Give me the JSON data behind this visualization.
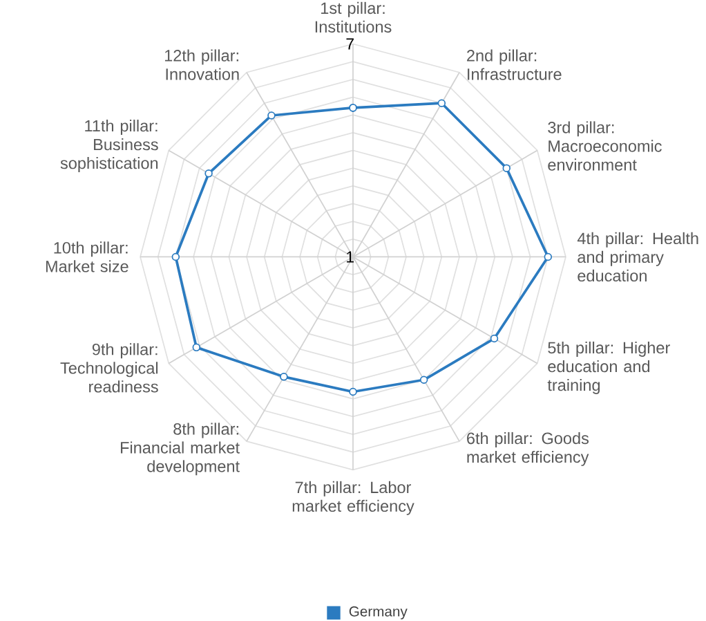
{
  "chart_data": {
    "type": "radar",
    "categories": [
      "1st pillar: Institutions",
      "2nd pillar: Infrastructure",
      "3rd pillar: Macroeconomic environment",
      "4th pillar: Health and primary education",
      "5th pillar: Higher education and training",
      "6th pillar: Goods market efficiency",
      "7th pillar: Labor market efficiency",
      "8th pillar: Financial market development",
      "9th pillar: Technological readiness",
      "10th pillar: Market size",
      "11th pillar: Business sophistication",
      "12th pillar: Innovation"
    ],
    "series": [
      {
        "name": "Germany",
        "color": "#2b7bc0",
        "values": [
          5.2,
          6.0,
          6.0,
          6.5,
          5.6,
          5.0,
          4.8,
          4.9,
          6.1,
          6.0,
          5.7,
          5.6
        ]
      }
    ],
    "ylim": [
      1,
      7
    ],
    "yticks": [
      1,
      7
    ],
    "grid": true,
    "marker": "circle",
    "legend": "bottom"
  }
}
